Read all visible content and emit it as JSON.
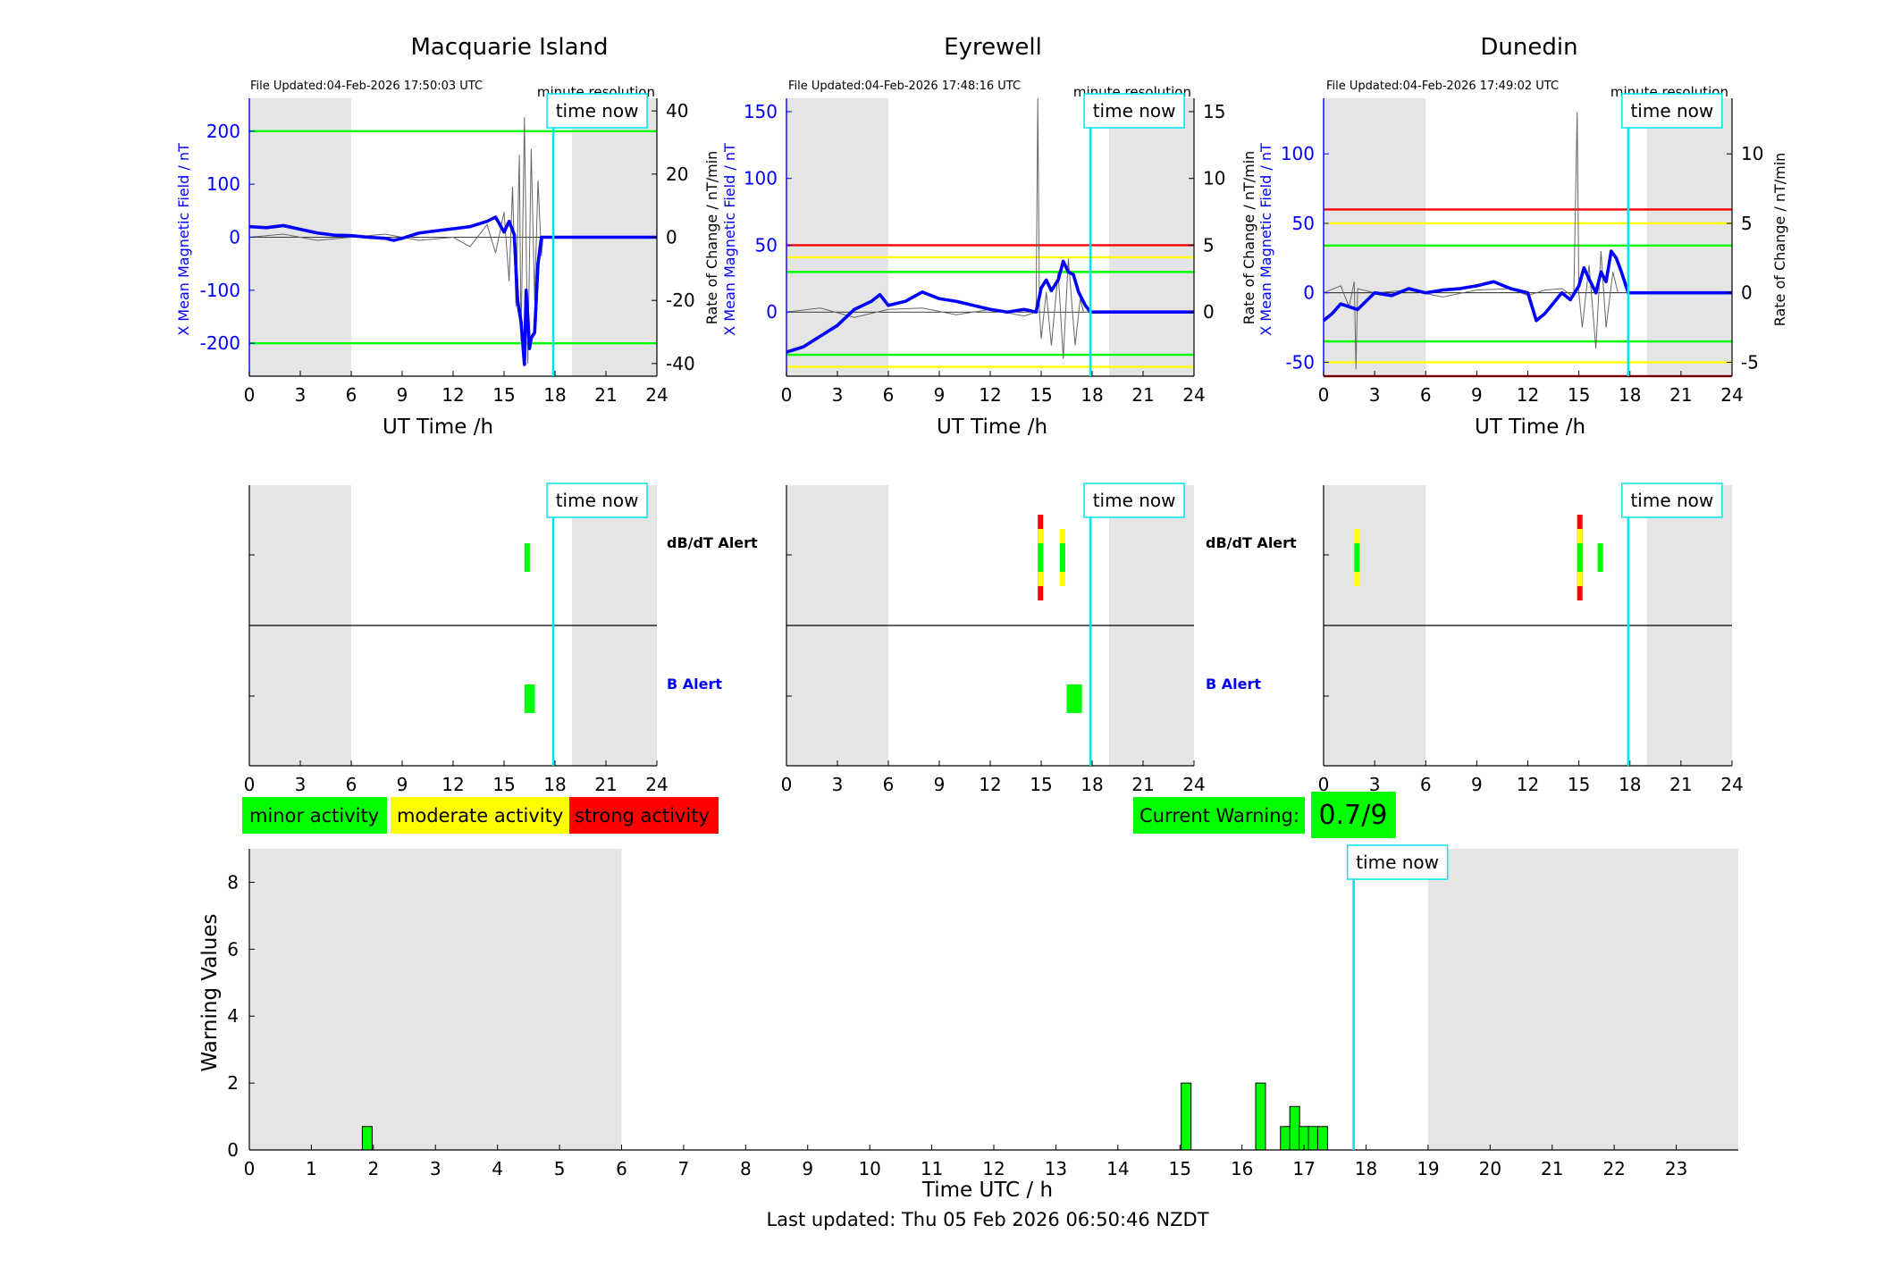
{
  "footer": {
    "last_updated": "Last updated: Thu 05 Feb 2026 06:50:46 NZDT"
  },
  "colors": {
    "b_series": "#0000ff",
    "rate_series": "#000000",
    "time_now": "#00e5ee",
    "night_shade": "#e5e5e5",
    "green_level": "#00ff00",
    "yellow_level": "#ffff00",
    "red_level": "#ff0000"
  },
  "legend": {
    "minor": "minor activity",
    "moderate": "moderate activity",
    "strong": "strong activity"
  },
  "warning": {
    "label": "Current Warning:",
    "value": "0.7/9"
  },
  "labels": {
    "file_res": "minute resolution",
    "time_now": "time now",
    "ut_xlabel": "UT Time /h",
    "b_ylabel": "X Mean Magnetic Field / nT",
    "rate_ylabel": "Rate of Change / nT/min",
    "dbdt_alert": "dB/dT Alert",
    "b_alert": "B Alert"
  },
  "chart_data": [
    {
      "type": "line",
      "title": "Macquarie Island",
      "file_updated": "File Updated:04-Feb-2026 17:50:03 UTC",
      "xlabel": "UT Time /h",
      "ylabel": "X Mean Magnetic Field / nT",
      "ylabel_right": "Rate of Change / nT/min",
      "xlim": [
        0,
        24
      ],
      "xticks": [
        0,
        3,
        6,
        9,
        12,
        15,
        18,
        21,
        24
      ],
      "ylim": [
        -262,
        262
      ],
      "yticks": [
        -200,
        -100,
        0,
        100,
        200
      ],
      "ylim_right": [
        -44,
        44
      ],
      "yticks_right": [
        -40,
        -20,
        0,
        20,
        40
      ],
      "night_shading": [
        [
          0,
          6
        ],
        [
          19,
          24
        ]
      ],
      "time_now": 17.9,
      "levels": [
        {
          "y": 200,
          "color": "green"
        },
        {
          "y": -200,
          "color": "green"
        }
      ],
      "series": [
        {
          "name": "X Mean Magnetic Field",
          "axis": "left",
          "x": [
            0,
            1,
            2,
            3,
            4,
            5,
            6,
            7,
            8,
            8.5,
            9,
            10,
            11,
            12,
            13,
            14,
            14.5,
            15,
            15.3,
            15.6,
            15.8,
            16,
            16.1,
            16.2,
            16.3,
            16.4,
            16.5,
            16.6,
            16.8,
            17.0,
            17.2,
            17.9,
            24
          ],
          "y": [
            20,
            18,
            22,
            15,
            8,
            4,
            3,
            0,
            -2,
            -6,
            -2,
            8,
            12,
            16,
            20,
            30,
            38,
            10,
            30,
            5,
            -120,
            -160,
            -200,
            -240,
            -100,
            -150,
            -210,
            -190,
            -180,
            -50,
            0,
            0,
            0
          ]
        },
        {
          "name": "Rate of Change",
          "axis": "right",
          "x": [
            0,
            2,
            4,
            6,
            8,
            10,
            12,
            13,
            14,
            14.5,
            15,
            15.3,
            15.5,
            15.7,
            15.9,
            16.0,
            16.2,
            16.4,
            16.6,
            16.8,
            17.0,
            17.2,
            17.3
          ],
          "y": [
            0,
            1,
            -1,
            0,
            1,
            -1,
            0,
            -3,
            4,
            -5,
            8,
            -14,
            16,
            -22,
            26,
            -33,
            38,
            -40,
            28,
            -20,
            18,
            -6,
            0
          ]
        }
      ],
      "alerts": {
        "dbdt": [
          {
            "start": 16.2,
            "end": 16.4,
            "level": "minor"
          }
        ],
        "b": [
          {
            "start": 16.2,
            "end": 16.4,
            "level": "minor"
          },
          {
            "start": 16.5,
            "end": 16.7,
            "level": "minor"
          }
        ]
      }
    },
    {
      "type": "line",
      "title": "Eyrewell",
      "file_updated": "File Updated:04-Feb-2026 17:48:16 UTC",
      "xlabel": "UT Time /h",
      "ylabel": "X Mean Magnetic Field / nT",
      "ylabel_right": "Rate of Change / nT/min",
      "xlim": [
        0,
        24
      ],
      "xticks": [
        0,
        3,
        6,
        9,
        12,
        15,
        18,
        21,
        24
      ],
      "ylim": [
        -48,
        160
      ],
      "yticks": [
        0,
        50,
        100,
        150
      ],
      "ylim_right": [
        -4.8,
        16
      ],
      "yticks_right": [
        0,
        5,
        10,
        15
      ],
      "night_shading": [
        [
          0,
          6
        ],
        [
          19,
          24
        ]
      ],
      "time_now": 17.9,
      "levels": [
        {
          "y": 50,
          "color": "red"
        },
        {
          "y": 41,
          "color": "yellow"
        },
        {
          "y": 30,
          "color": "green"
        },
        {
          "y": -32,
          "color": "green"
        },
        {
          "y": -41,
          "color": "yellow"
        }
      ],
      "series": [
        {
          "name": "X Mean Magnetic Field",
          "axis": "left",
          "x": [
            0,
            1,
            2,
            3,
            4,
            5,
            5.5,
            6,
            7,
            8,
            9,
            10,
            11,
            12,
            13,
            14,
            14.7,
            15,
            15.3,
            15.6,
            16,
            16.3,
            16.6,
            16.9,
            17.2,
            17.6,
            17.9,
            24
          ],
          "y": [
            -30,
            -26,
            -18,
            -10,
            2,
            8,
            13,
            5,
            8,
            15,
            10,
            8,
            5,
            2,
            0,
            2,
            0,
            18,
            24,
            16,
            24,
            38,
            30,
            28,
            15,
            5,
            0,
            0
          ]
        },
        {
          "name": "Rate of Change",
          "axis": "right",
          "x": [
            0,
            2,
            4,
            6,
            8,
            10,
            12,
            14,
            14.7,
            14.8,
            14.9,
            15.0,
            15.3,
            15.6,
            16.0,
            16.3,
            16.6,
            17.0,
            17.3,
            17.5
          ],
          "y": [
            0,
            0.3,
            -0.4,
            0.2,
            0.3,
            -0.2,
            0.2,
            -0.3,
            0,
            16,
            0,
            -2,
            1.5,
            -2.5,
            3,
            -3.5,
            4,
            -2.5,
            1,
            0
          ]
        }
      ],
      "alerts": {
        "dbdt": [
          {
            "start": 14.8,
            "end": 15.1,
            "level": "strong"
          },
          {
            "start": 16.1,
            "end": 16.4,
            "level": "moderate"
          }
        ],
        "b": [
          {
            "start": 16.5,
            "end": 17.4,
            "level": "minor"
          }
        ]
      }
    },
    {
      "type": "line",
      "title": "Dunedin",
      "file_updated": "File Updated:04-Feb-2026 17:49:02 UTC",
      "xlabel": "UT Time /h",
      "ylabel": "X Mean Magnetic Field / nT",
      "ylabel_right": "Rate of Change / nT/min",
      "xlim": [
        0,
        24
      ],
      "xticks": [
        0,
        3,
        6,
        9,
        12,
        15,
        18,
        21,
        24
      ],
      "ylim": [
        -60,
        140
      ],
      "yticks": [
        -50,
        0,
        50,
        100
      ],
      "ylim_right": [
        -6,
        14
      ],
      "yticks_right": [
        -5,
        0,
        5,
        10
      ],
      "night_shading": [
        [
          0,
          6
        ],
        [
          19,
          24
        ]
      ],
      "time_now": 17.9,
      "levels": [
        {
          "y": 60,
          "color": "red"
        },
        {
          "y": 50,
          "color": "yellow"
        },
        {
          "y": 34,
          "color": "green"
        },
        {
          "y": -35,
          "color": "green"
        },
        {
          "y": -50,
          "color": "yellow"
        },
        {
          "y": -60,
          "color": "red"
        }
      ],
      "series": [
        {
          "name": "X Mean Magnetic Field",
          "axis": "left",
          "x": [
            0,
            0.5,
            1,
            2,
            3,
            4,
            5,
            6,
            7,
            8,
            9,
            10,
            11,
            12,
            12.5,
            13,
            14,
            14.5,
            15,
            15.3,
            15.6,
            16,
            16.3,
            16.6,
            16.9,
            17.2,
            17.5,
            17.9,
            24
          ],
          "y": [
            -20,
            -15,
            -8,
            -12,
            0,
            -2,
            3,
            0,
            2,
            3,
            5,
            8,
            3,
            0,
            -20,
            -15,
            0,
            -5,
            5,
            18,
            10,
            0,
            15,
            8,
            30,
            25,
            15,
            0,
            0
          ]
        },
        {
          "name": "Rate of Change",
          "axis": "right",
          "x": [
            0,
            1,
            1.5,
            1.8,
            1.9,
            2.0,
            3,
            5,
            7,
            9,
            11,
            12,
            13,
            14,
            14.7,
            14.9,
            15.0,
            15.2,
            15.6,
            16.0,
            16.3,
            16.6,
            17.0,
            17.3
          ],
          "y": [
            0,
            0.5,
            -1,
            0.8,
            -5.5,
            0.3,
            0,
            0.2,
            -0.3,
            0.2,
            0.3,
            -0.2,
            0.2,
            0.3,
            -0.3,
            13,
            0,
            -2.5,
            2,
            -4,
            3,
            -2.5,
            1.5,
            0
          ]
        }
      ],
      "alerts": {
        "dbdt": [
          {
            "start": 1.8,
            "end": 2.1,
            "level": "moderate"
          },
          {
            "start": 14.9,
            "end": 15.2,
            "level": "strong"
          },
          {
            "start": 16.1,
            "end": 16.4,
            "level": "minor"
          }
        ],
        "b": []
      }
    },
    {
      "type": "bar",
      "title": "",
      "xlabel": "Time UTC / h",
      "ylabel": "Warning Values",
      "xlim": [
        0,
        24
      ],
      "xticks": [
        0,
        1,
        2,
        3,
        4,
        5,
        6,
        7,
        8,
        9,
        10,
        11,
        12,
        13,
        14,
        15,
        16,
        17,
        18,
        19,
        20,
        21,
        22,
        23
      ],
      "ylim": [
        0,
        9
      ],
      "yticks": [
        0,
        2,
        4,
        6,
        8
      ],
      "night_shading": [
        [
          0,
          6
        ],
        [
          19,
          24
        ]
      ],
      "time_now": 17.8,
      "x": [
        1.9,
        15.1,
        16.3,
        16.7,
        16.85,
        17.0,
        17.15,
        17.3
      ],
      "values": [
        0.7,
        2.0,
        2.0,
        0.7,
        1.3,
        0.7,
        0.7,
        0.7
      ]
    }
  ]
}
